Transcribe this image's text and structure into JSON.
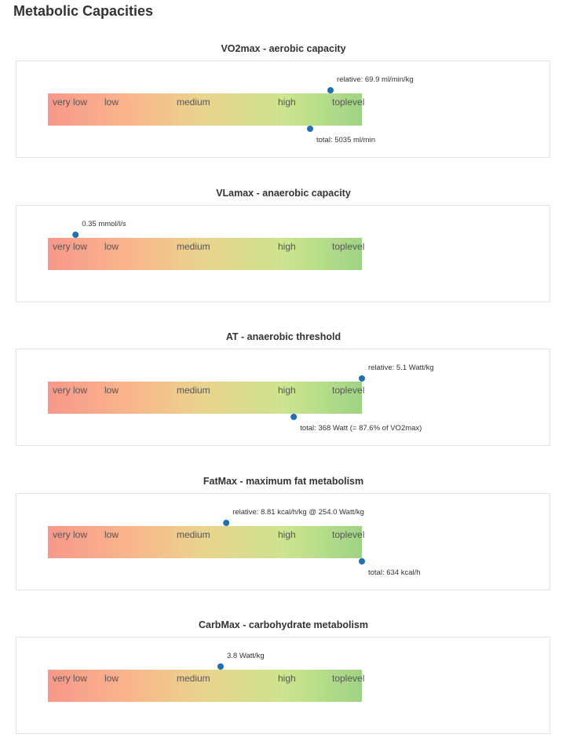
{
  "page_title": "Metabolic Capacities",
  "colors": {
    "gradient": [
      "#f7988a",
      "#fab48c",
      "#e9d48c",
      "#cde48e",
      "#9ed484"
    ],
    "marker": "#1f6fb2"
  },
  "levels": [
    "very low",
    "low",
    "medium",
    "high",
    "toplevel"
  ],
  "chart_data": [
    {
      "type": "gauge",
      "title": "VO2max - aerobic capacity",
      "range": [
        0,
        1
      ],
      "markers": [
        {
          "label": "relative: 69.9 ml/min/kg",
          "value": 0.9,
          "side": "top"
        },
        {
          "label": "total: 5035 ml/min",
          "value": 0.835,
          "side": "bottom"
        }
      ]
    },
    {
      "type": "gauge",
      "title": "VLamax - anaerobic capacity",
      "range": [
        0,
        1
      ],
      "markers": [
        {
          "label": "0.35 mmol/l/s",
          "value": 0.088,
          "side": "top"
        }
      ]
    },
    {
      "type": "gauge",
      "title": "AT - anaerobic threshold",
      "range": [
        0,
        1
      ],
      "markers": [
        {
          "label": "relative: 5.1 Watt/kg",
          "value": 1.0,
          "side": "top"
        },
        {
          "label": "total: 368 Watt (= 87.6% of VO2max)",
          "value": 0.783,
          "side": "bottom"
        }
      ]
    },
    {
      "type": "gauge",
      "title": "FatMax - maximum fat metabolism",
      "range": [
        0,
        1
      ],
      "markers": [
        {
          "label": "relative: 8.81 kcal/h/kg @ 254.0 Watt/kg",
          "value": 0.568,
          "side": "top"
        },
        {
          "label": "total: 634 kcal/h",
          "value": 1.0,
          "side": "bottom"
        }
      ]
    },
    {
      "type": "gauge",
      "title": "CarbMax - carbohydrate metabolism",
      "range": [
        0,
        1
      ],
      "markers": [
        {
          "label": "3.8 Watt/kg",
          "value": 0.55,
          "side": "top"
        }
      ]
    }
  ]
}
